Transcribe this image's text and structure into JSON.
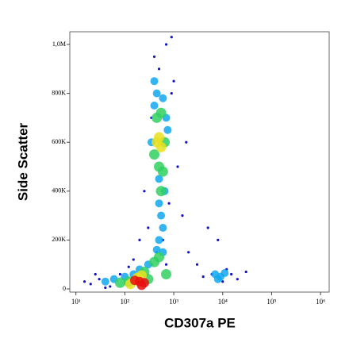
{
  "chart_data": {
    "type": "scatter",
    "x_label": "CD307a PE",
    "y_label": "Side Scatter",
    "xscale": "log",
    "xlim": [
      7.5,
      1500000
    ],
    "xticks": [
      {
        "value": 10,
        "label": "10¹"
      },
      {
        "value": 100,
        "label": "10²"
      },
      {
        "value": 1000,
        "label": "10³"
      },
      {
        "value": 10000,
        "label": "10⁴"
      },
      {
        "value": 100000,
        "label": "10⁵"
      },
      {
        "value": 1000000,
        "label": "10⁶"
      }
    ],
    "ylim": [
      -13000,
      1052000
    ],
    "yticks": [
      0,
      {
        "value": 200000,
        "label": "200K"
      },
      {
        "value": 400000,
        "label": "400K"
      },
      {
        "value": 600000,
        "label": "600K"
      },
      {
        "value": 800000,
        "label": "800K"
      },
      {
        "value": 1000000,
        "label": "1,0M"
      }
    ],
    "series": [
      {
        "color": "#1010d0",
        "x": [
          20,
          30,
          50,
          15,
          80,
          150,
          300,
          250,
          350,
          900,
          1200,
          1500,
          2000,
          3000,
          5000,
          8000,
          12000,
          20000,
          10000,
          6000,
          400,
          700,
          500,
          1000,
          800,
          600,
          450,
          350,
          700,
          200,
          1800,
          40,
          25,
          120,
          4000,
          15000,
          30000,
          900
        ],
        "values": [
          20000,
          40000,
          10000,
          30000,
          60000,
          120000,
          250000,
          400000,
          700000,
          800000,
          500000,
          300000,
          150000,
          100000,
          250000,
          200000,
          80000,
          40000,
          30000,
          60000,
          950000,
          1000000,
          900000,
          850000,
          350000,
          200000,
          150000,
          100000,
          100000,
          200000,
          600000,
          5000,
          60000,
          90000,
          50000,
          60000,
          70000,
          1030000
        ]
      },
      {
        "color": "#10a8f0",
        "x": [
          400,
          450,
          600,
          350,
          700,
          500,
          550,
          600,
          500,
          450,
          600,
          300,
          200,
          150,
          100,
          60,
          40,
          7000,
          9000,
          11000,
          8000,
          500,
          650,
          400,
          750
        ],
        "values": [
          850000,
          800000,
          780000,
          600000,
          700000,
          350000,
          300000,
          250000,
          200000,
          160000,
          150000,
          100000,
          80000,
          60000,
          50000,
          40000,
          30000,
          60000,
          50000,
          65000,
          40000,
          450000,
          400000,
          750000,
          650000
        ]
      },
      {
        "color": "#30d060",
        "x": [
          450,
          550,
          400,
          650,
          500,
          600,
          550,
          500,
          400,
          250,
          120,
          80,
          700,
          300
        ],
        "values": [
          700000,
          720000,
          550000,
          600000,
          500000,
          480000,
          400000,
          130000,
          110000,
          70000,
          30000,
          25000,
          60000,
          40000
        ]
      },
      {
        "color": "#e8e020",
        "x": [
          500,
          550,
          450,
          180,
          220,
          130
        ],
        "values": [
          620000,
          580000,
          600000,
          45000,
          55000,
          20000
        ]
      },
      {
        "color": "#e81010",
        "x": [
          200,
          250,
          160,
          220
        ],
        "values": [
          30000,
          25000,
          35000,
          15000
        ]
      }
    ]
  }
}
